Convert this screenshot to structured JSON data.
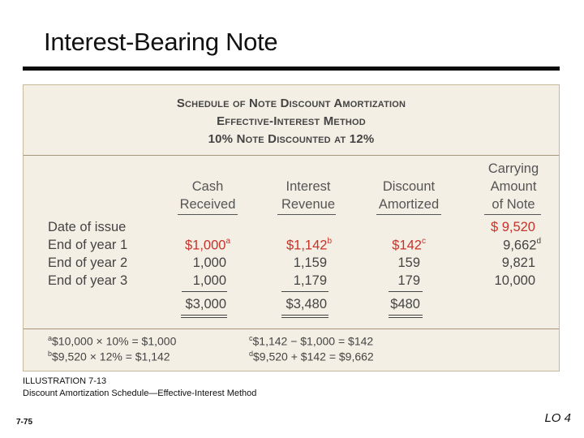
{
  "slide": {
    "title": "Interest-Bearing Note",
    "illustration_label": "ILLUSTRATION 7-13",
    "illustration_caption": "Discount Amortization Schedule—Effective-Interest Method",
    "page_number": "7-75",
    "learning_objective": "LO 4"
  },
  "schedule": {
    "title_lines": [
      "Schedule of Note Discount Amortization",
      "Effective-Interest Method",
      "10% Note Discounted at 12%"
    ],
    "columns": [
      {
        "lines": [
          "Cash",
          "Received"
        ]
      },
      {
        "lines": [
          "Interest",
          "Revenue"
        ]
      },
      {
        "lines": [
          "Discount",
          "Amortized"
        ]
      },
      {
        "lines": [
          "Carrying",
          "Amount",
          "of Note"
        ]
      }
    ],
    "rows": [
      {
        "label": "Date of issue",
        "cash": "",
        "interest": "",
        "discount": "",
        "carrying": "$ 9,520"
      },
      {
        "label": "End of year 1",
        "cash": "$1,000",
        "cash_note": "a",
        "interest": "$1,142",
        "interest_note": "b",
        "discount": "$142",
        "discount_note": "c",
        "carrying": "9,662",
        "carrying_note": "d"
      },
      {
        "label": "End of year 2",
        "cash": "1,000",
        "interest": "1,159",
        "discount": "159",
        "carrying": "9,821"
      },
      {
        "label": "End of year 3",
        "cash": "1,000",
        "interest": "1,179",
        "discount": "179",
        "carrying": "10,000"
      }
    ],
    "totals": {
      "cash": "$3,000",
      "interest": "$3,480",
      "discount": "$480"
    },
    "footnotes": [
      {
        "mark": "a",
        "text": "$10,000 × 10% = $1,000"
      },
      {
        "mark": "b",
        "text": "$9,520 × 12% = $1,142"
      },
      {
        "mark": "c",
        "text": "$1,142 − $1,000 = $142"
      },
      {
        "mark": "d",
        "text": "$9,520 + $142 = $9,662"
      }
    ],
    "colors": {
      "highlight": "#c8322a",
      "panel": "#f4efe4",
      "rule": "#a8967a"
    }
  }
}
